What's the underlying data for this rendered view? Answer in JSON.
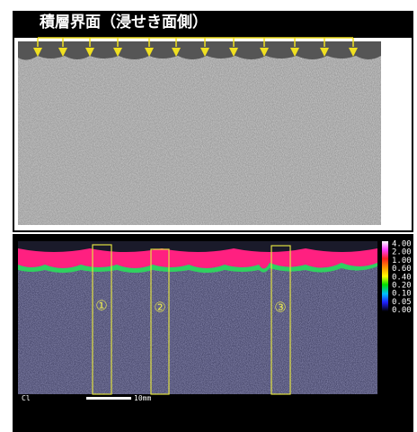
{
  "header": {
    "title": "積層界面（浸せき面側）"
  },
  "map": {
    "element": "Cl",
    "regions": [
      "①",
      "②",
      "③"
    ],
    "scale_bar": "10mm",
    "color_scale": [
      "4.00",
      "2.00",
      "1.00",
      "0.60",
      "0.40",
      "0.20",
      "0.10",
      "0.05",
      "0.00"
    ]
  }
}
